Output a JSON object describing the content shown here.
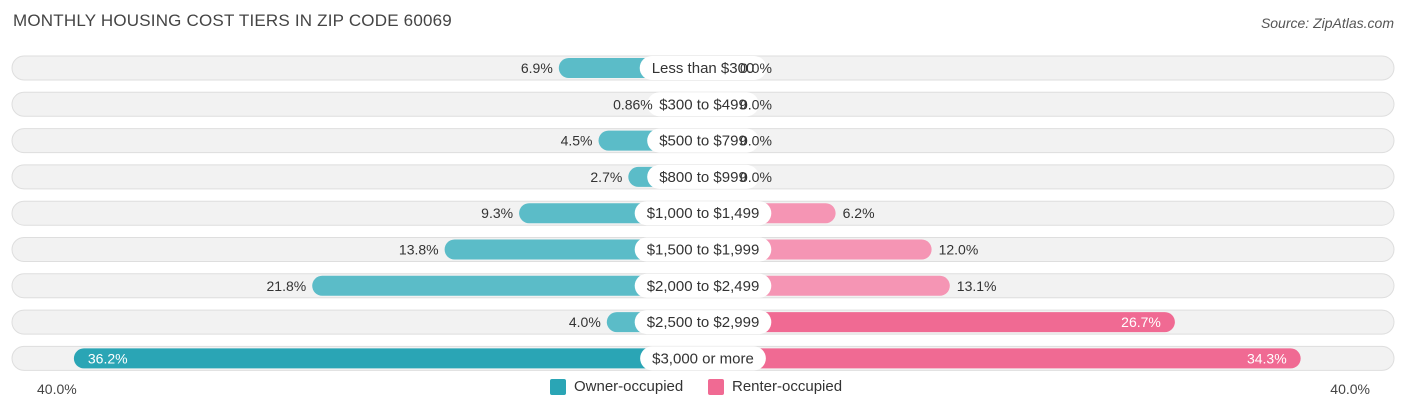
{
  "title": "MONTHLY HOUSING COST TIERS IN ZIP CODE 60069",
  "source": "Source: ZipAtlas.com",
  "colors": {
    "owner": "#5bbcc8",
    "owner_strong": "#2aa5b5",
    "renter": "#f595b4",
    "renter_strong": "#f06a93",
    "row_bg": "#f2f2f2",
    "row_border": "#dedede"
  },
  "legend": {
    "owner_label": "Owner-occupied",
    "renter_label": "Renter-occupied"
  },
  "axis": {
    "left_label": "40.0%",
    "right_label": "40.0%"
  },
  "chart_data": {
    "type": "bar",
    "orientation": "horizontal-diverging",
    "xlim": [
      -40,
      40
    ],
    "categories": [
      "Less than $300",
      "$300 to $499",
      "$500 to $799",
      "$800 to $999",
      "$1,000 to $1,499",
      "$1,500 to $1,999",
      "$2,000 to $2,499",
      "$2,500 to $2,999",
      "$3,000 or more"
    ],
    "series": [
      {
        "name": "Owner-occupied",
        "values": [
          6.9,
          0.86,
          4.5,
          2.7,
          9.3,
          13.8,
          21.8,
          4.0,
          36.2
        ],
        "labels": [
          "6.9%",
          "0.86%",
          "4.5%",
          "2.7%",
          "9.3%",
          "13.8%",
          "21.8%",
          "4.0%",
          "36.2%"
        ]
      },
      {
        "name": "Renter-occupied",
        "values": [
          0.0,
          0.0,
          0.0,
          0.0,
          6.2,
          12.0,
          13.1,
          26.7,
          34.3
        ],
        "labels": [
          "0.0%",
          "0.0%",
          "0.0%",
          "0.0%",
          "6.2%",
          "12.0%",
          "13.1%",
          "26.7%",
          "34.3%"
        ]
      }
    ],
    "legend_position": "bottom-center"
  }
}
